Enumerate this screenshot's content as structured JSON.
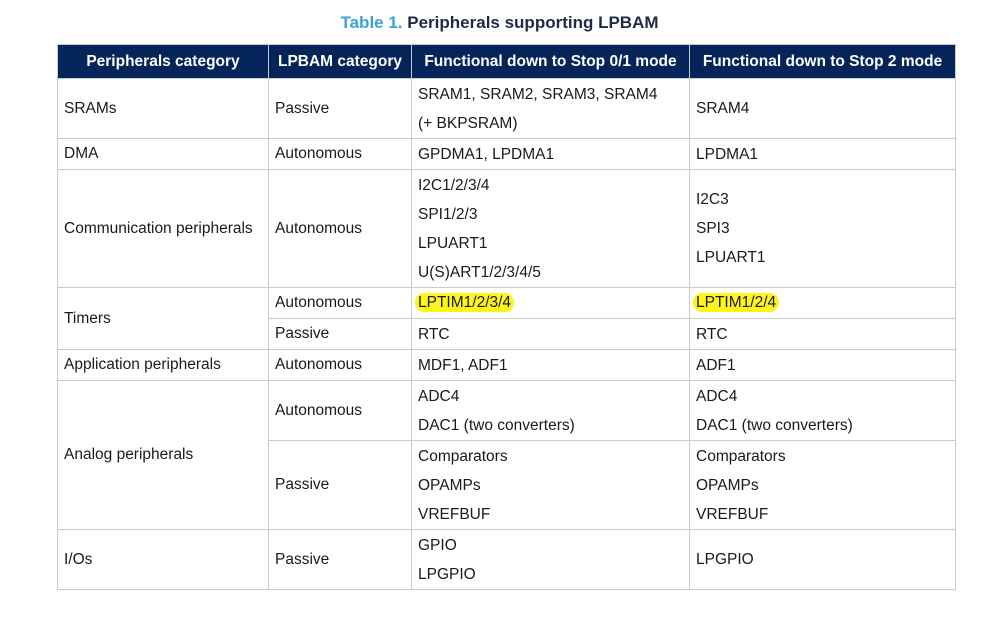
{
  "caption": {
    "number": "Table 1.",
    "title": "Peripherals supporting LPBAM"
  },
  "header": {
    "col1": "Peripherals category",
    "col2": "LPBAM category",
    "col3": "Functional down to Stop 0/1 mode",
    "col4": "Functional down to Stop 2 mode"
  },
  "rows": {
    "srams": {
      "category": "SRAMs",
      "lpbam": "Passive",
      "stop01": [
        "SRAM1, SRAM2, SRAM3, SRAM4",
        "(+ BKPSRAM)"
      ],
      "stop2": [
        "SRAM4"
      ]
    },
    "dma": {
      "category": "DMA",
      "lpbam": "Autonomous",
      "stop01": [
        "GPDMA1, LPDMA1"
      ],
      "stop2": [
        "LPDMA1"
      ]
    },
    "comm": {
      "category": "Communication peripherals",
      "lpbam": "Autonomous",
      "stop01": [
        "I2C1/2/3/4",
        "SPI1/2/3",
        "LPUART1",
        "U(S)ART1/2/3/4/5"
      ],
      "stop2": [
        "I2C3",
        "SPI3",
        "LPUART1"
      ]
    },
    "timers": {
      "category": "Timers",
      "autonomous": {
        "lpbam": "Autonomous",
        "stop01": [
          "LPTIM1/2/3/4"
        ],
        "stop2": [
          "LPTIM1/2/4"
        ]
      },
      "passive": {
        "lpbam": "Passive",
        "stop01": [
          "RTC"
        ],
        "stop2": [
          "RTC"
        ]
      }
    },
    "app": {
      "category": "Application peripherals",
      "lpbam": "Autonomous",
      "stop01": [
        "MDF1, ADF1"
      ],
      "stop2": [
        "ADF1"
      ]
    },
    "analog": {
      "category": "Analog peripherals",
      "autonomous": {
        "lpbam": "Autonomous",
        "stop01": [
          "ADC4",
          "DAC1 (two converters)"
        ],
        "stop2": [
          "ADC4",
          "DAC1 (two converters)"
        ]
      },
      "passive": {
        "lpbam": "Passive",
        "stop01": [
          "Comparators",
          "OPAMPs",
          "VREFBUF"
        ],
        "stop2": [
          "Comparators",
          "OPAMPs",
          "VREFBUF"
        ]
      }
    },
    "ios": {
      "category": "I/Os",
      "lpbam": "Passive",
      "stop01": [
        "GPIO",
        "LPGPIO"
      ],
      "stop2": [
        "LPGPIO"
      ]
    }
  },
  "colors": {
    "header_bg": "#05245a",
    "caption_number": "#3aa3d6",
    "highlight": "#fdf51b",
    "border": "#c8ccd2"
  }
}
